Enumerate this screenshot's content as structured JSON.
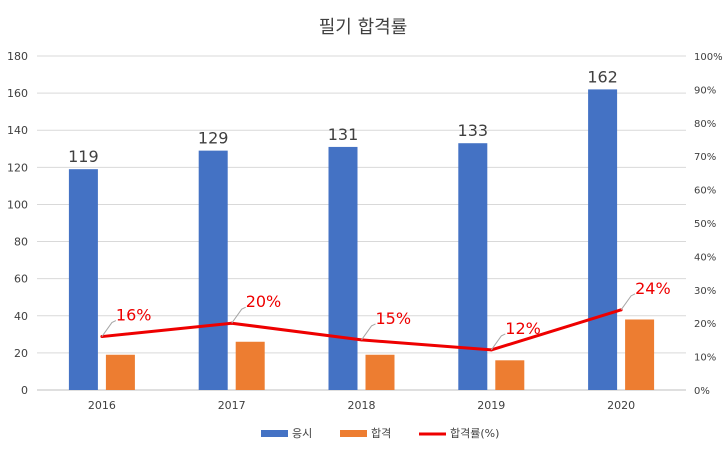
{
  "chart_data": {
    "type": "bar",
    "title": "필기 합격률",
    "categories": [
      "2016",
      "2017",
      "2018",
      "2019",
      "2020"
    ],
    "series": [
      {
        "name": "응시",
        "kind": "bar",
        "axis": "left",
        "color": "#4472C4",
        "values": [
          119,
          129,
          131,
          133,
          162
        ],
        "labels": [
          "119",
          "129",
          "131",
          "133",
          "162"
        ]
      },
      {
        "name": "합격",
        "kind": "bar",
        "axis": "left",
        "color": "#ED7D31",
        "values": [
          19,
          26,
          19,
          16,
          38
        ]
      },
      {
        "name": "합격률(%)",
        "kind": "line",
        "axis": "right",
        "color": "#EE0000",
        "values": [
          16,
          20,
          15,
          12,
          24
        ],
        "labels": [
          "16%",
          "20%",
          "15%",
          "12%",
          "24%"
        ]
      }
    ],
    "ylim": [
      0,
      180
    ],
    "yticks": [
      "0",
      "20",
      "40",
      "60",
      "80",
      "100",
      "120",
      "140",
      "160",
      "180"
    ],
    "y2lim": [
      0,
      100
    ],
    "y2ticks": [
      "0%",
      "10%",
      "20%",
      "30%",
      "40%",
      "50%",
      "60%",
      "70%",
      "80%",
      "90%",
      "100%"
    ],
    "legend_position": "bottom",
    "grid": true
  }
}
